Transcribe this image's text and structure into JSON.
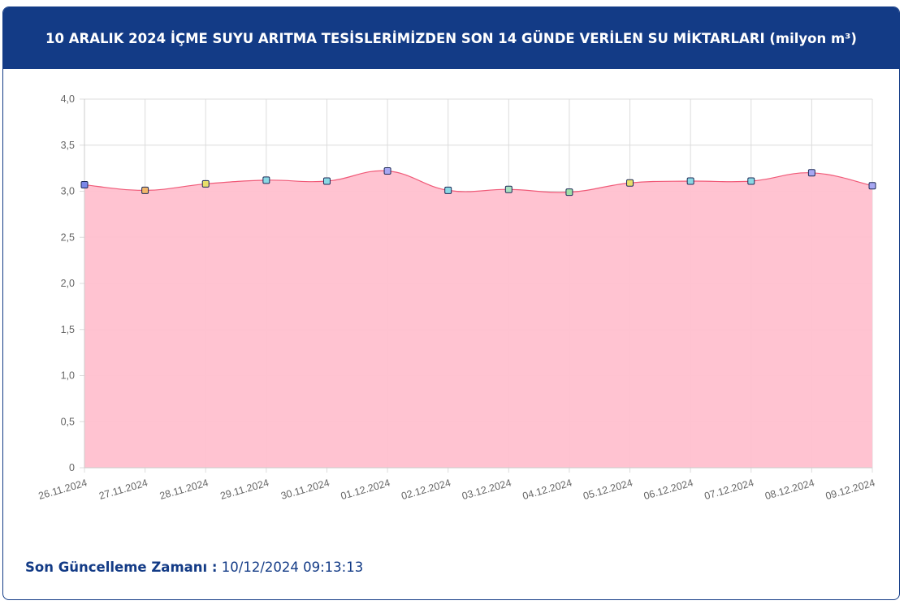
{
  "header": {
    "title": "10 ARALIK 2024 İÇME SUYU ARITMA TESİSLERİMİZDEN SON 14 GÜNDE VERİLEN SU MİKTARLARI (milyon m³)"
  },
  "footer": {
    "label": "Son Güncelleme Zamanı :",
    "value": "10/12/2024 09:13:13"
  },
  "colors": {
    "header_bg": "#133b86",
    "area_fill": "#ffc0cf",
    "line": "#f05a78",
    "grid": "#dcdcdc"
  },
  "chart_data": {
    "type": "area",
    "categories": [
      "26.11.2024",
      "27.11.2024",
      "28.11.2024",
      "29.11.2024",
      "30.11.2024",
      "01.12.2024",
      "02.12.2024",
      "03.12.2024",
      "04.12.2024",
      "05.12.2024",
      "06.12.2024",
      "07.12.2024",
      "08.12.2024",
      "09.12.2024"
    ],
    "values": [
      3.07,
      3.01,
      3.08,
      3.12,
      3.11,
      3.22,
      3.01,
      3.02,
      2.99,
      3.09,
      3.11,
      3.11,
      3.2,
      3.06
    ],
    "point_colors": [
      "#7b87e8",
      "#f2b76b",
      "#e8df6a",
      "#8ad8e4",
      "#8ad8e4",
      "#a7a7f2",
      "#8ad8e4",
      "#a8e0c0",
      "#9fe0a8",
      "#e8df6a",
      "#8ad8e4",
      "#8ad8e4",
      "#a7a7f2",
      "#a7a7f2"
    ],
    "ylim": [
      0,
      4
    ],
    "yticks": [
      "0",
      "0,5",
      "1,0",
      "1,5",
      "2,0",
      "2,5",
      "3,0",
      "3,5",
      "4,0"
    ],
    "ytick_values": [
      0,
      0.5,
      1.0,
      1.5,
      2.0,
      2.5,
      3.0,
      3.5,
      4.0
    ],
    "grid": true,
    "legend": "none"
  }
}
